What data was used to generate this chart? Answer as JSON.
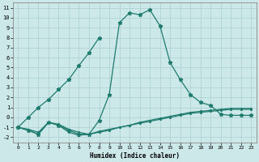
{
  "xlabel": "Humidex (Indice chaleur)",
  "bg_color": "#cce8e8",
  "line_color": "#1e7b6e",
  "grid_color": "#aacfcf",
  "xlim": [
    -0.5,
    23.5
  ],
  "ylim": [
    -2.5,
    11.5
  ],
  "xticks": [
    0,
    1,
    2,
    3,
    4,
    5,
    6,
    7,
    8,
    9,
    10,
    11,
    12,
    13,
    14,
    15,
    16,
    17,
    18,
    19,
    20,
    21,
    22,
    23
  ],
  "yticks": [
    -2,
    -1,
    0,
    1,
    2,
    3,
    4,
    5,
    6,
    7,
    8,
    9,
    10,
    11
  ],
  "peak_x": [
    0,
    1,
    2,
    3,
    4,
    5,
    6,
    7,
    8,
    9,
    10,
    11,
    12,
    13,
    14,
    15,
    16,
    17,
    18,
    19,
    20,
    21,
    22,
    23
  ],
  "peak_y": [
    -1,
    -1.3,
    -1.7,
    -0.5,
    -0.8,
    -1.3,
    -1.7,
    -1.7,
    -0.3,
    2.3,
    9.5,
    10.5,
    10.3,
    10.8,
    9.2,
    5.5,
    3.8,
    2.3,
    1.5,
    1.2,
    0.3,
    0.2,
    0.2,
    0.2
  ],
  "diag_x": [
    0,
    1,
    2,
    3,
    4,
    5,
    6,
    7,
    8
  ],
  "diag_y": [
    -1.0,
    0.0,
    1.0,
    1.8,
    2.8,
    3.8,
    5.2,
    6.5,
    8.0
  ],
  "flat1_x": [
    0,
    1,
    2,
    3,
    4,
    5,
    6,
    7,
    8,
    9,
    10,
    11,
    12,
    13,
    14,
    15,
    16,
    17,
    18,
    19,
    20,
    21,
    22,
    23
  ],
  "flat1_y": [
    -1.0,
    -1.3,
    -1.7,
    -0.5,
    -0.8,
    -1.5,
    -1.8,
    -1.7,
    -1.5,
    -1.3,
    -1.0,
    -0.8,
    -0.6,
    -0.4,
    -0.2,
    0.0,
    0.2,
    0.4,
    0.5,
    0.6,
    0.7,
    0.8,
    0.8,
    0.8
  ],
  "flat2_x": [
    0,
    1,
    2,
    3,
    4,
    5,
    6,
    7,
    8,
    9,
    10,
    11,
    12,
    13,
    14,
    15,
    16,
    17,
    18,
    19,
    20,
    21,
    22,
    23
  ],
  "flat2_y": [
    -1.0,
    -1.2,
    -1.5,
    -0.5,
    -0.7,
    -1.2,
    -1.5,
    -1.7,
    -1.4,
    -1.2,
    -1.0,
    -0.8,
    -0.5,
    -0.3,
    -0.1,
    0.1,
    0.3,
    0.5,
    0.6,
    0.7,
    0.8,
    0.9,
    0.9,
    0.9
  ]
}
